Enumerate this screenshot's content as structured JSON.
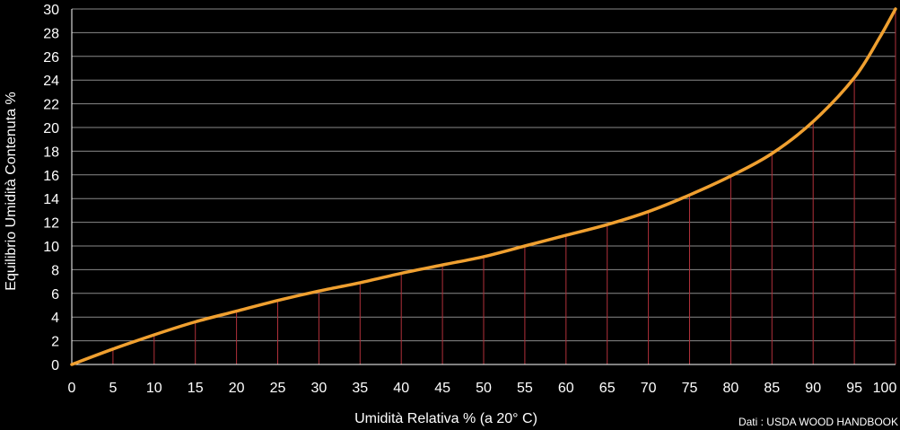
{
  "chart_data": {
    "type": "line",
    "xlabel": "Umidità Relativa % (a 20° C)",
    "ylabel": "Equilibrio Umidità Contenuta %",
    "xlim": [
      0,
      100
    ],
    "ylim": [
      0,
      30
    ],
    "x_ticks": [
      "0",
      "5",
      "10",
      "15",
      "20",
      "25",
      "30",
      "35",
      "40",
      "45",
      "50",
      "55",
      "60",
      "65",
      "70",
      "75",
      "80",
      "85",
      "90",
      "95",
      "100"
    ],
    "y_ticks": [
      "0",
      "2",
      "4",
      "6",
      "8",
      "10",
      "12",
      "14",
      "16",
      "18",
      "20",
      "22",
      "24",
      "26",
      "28",
      "30"
    ],
    "grid": "horizontal",
    "series": [
      {
        "x": [
          0,
          5,
          10,
          15,
          20,
          25,
          30,
          35,
          40,
          45,
          50,
          55,
          60,
          65,
          70,
          75,
          80,
          85,
          90,
          95,
          98,
          100
        ],
        "y": [
          0,
          1.3,
          2.5,
          3.6,
          4.5,
          5.4,
          6.2,
          6.9,
          7.7,
          8.4,
          9.1,
          10.0,
          10.9,
          11.8,
          12.9,
          14.3,
          15.9,
          17.8,
          20.5,
          24.2,
          27.5,
          30.0
        ]
      }
    ],
    "colors": {
      "background": "#000000",
      "grid": "#8a8a8a",
      "drop_lines": "#b0303a",
      "line": "#f0a030",
      "text": "#ffffff"
    },
    "source_note": "Dati : USDA WOOD HANDBOOK"
  }
}
